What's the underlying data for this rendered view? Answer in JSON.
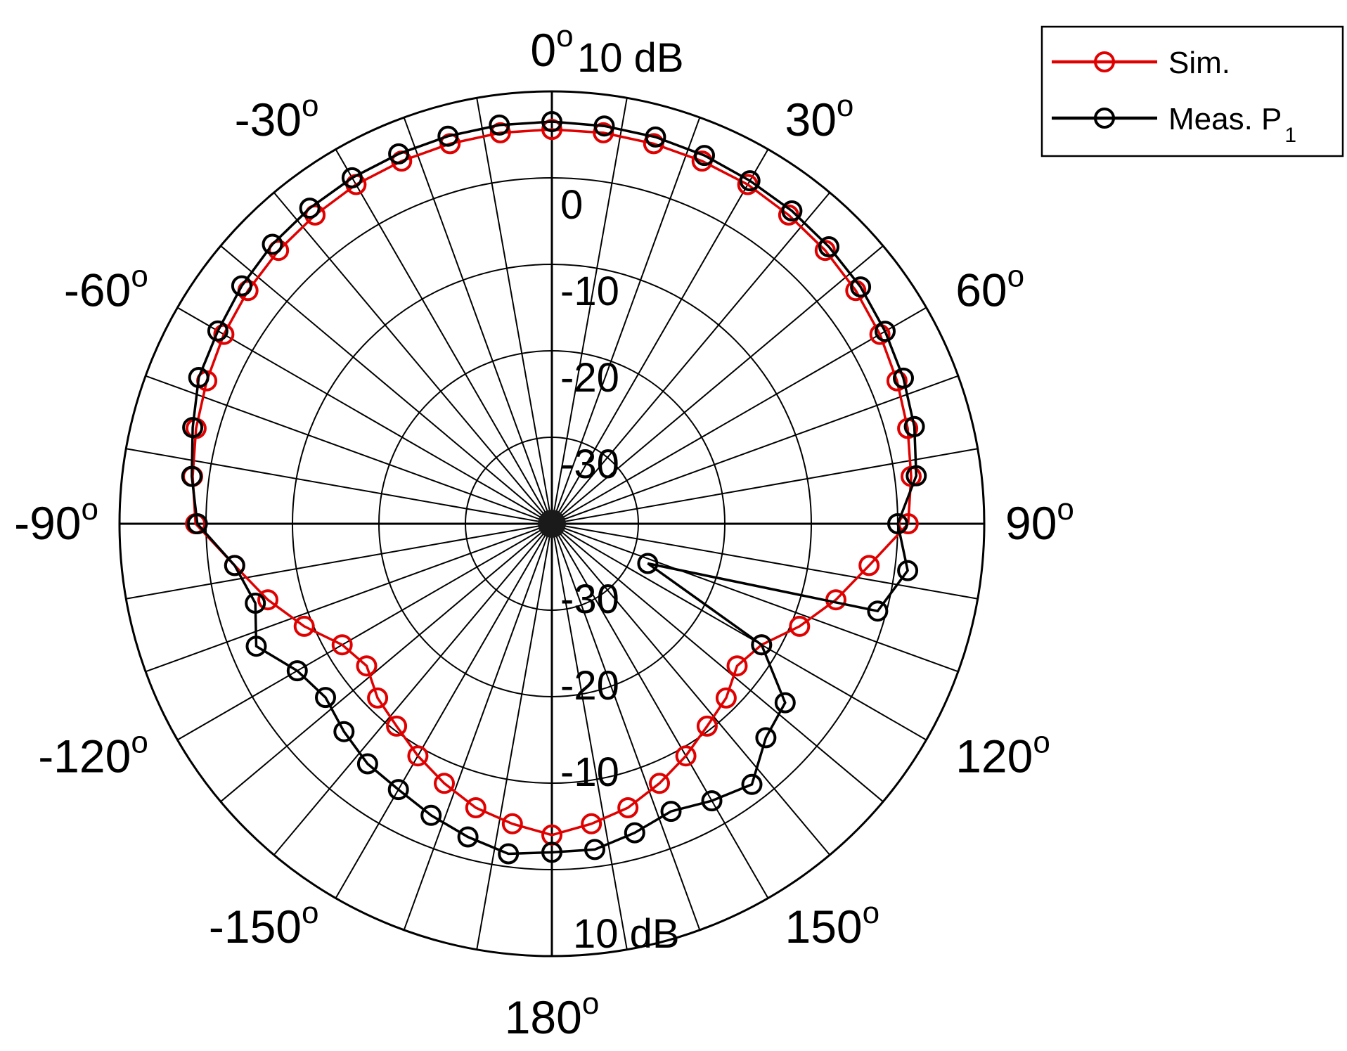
{
  "chart_data": {
    "type": "polar",
    "title": "",
    "r_unit": "dB",
    "r_range": [
      -40,
      10
    ],
    "r_ticks_upper": [
      "0",
      "-10",
      "-20",
      "-30"
    ],
    "r_ticks_lower": [
      "-30",
      "-20",
      "-10"
    ],
    "r_max_label": "10 dB",
    "angle_zero": "top",
    "angle_direction": "clockwise",
    "angle_labels": [
      "0",
      "30",
      "60",
      "90",
      "120",
      "150",
      "180",
      "-150",
      "-120",
      "-90",
      "-60",
      "-30"
    ],
    "angle_label_values": [
      0,
      30,
      60,
      90,
      120,
      150,
      180,
      -150,
      -120,
      -90,
      -60,
      -30
    ],
    "degree_symbol": "o",
    "angular_gridline_step_deg": 10,
    "grid": true,
    "legend": {
      "position": "top-right"
    },
    "series": [
      {
        "name": "Sim.",
        "name_sub": "",
        "color": "#e00000",
        "marker": "circle-open",
        "theta_deg": [
          0,
          7.5,
          15,
          22.5,
          30,
          37.5,
          45,
          52.5,
          60,
          67.5,
          75,
          82.5,
          90,
          97.5,
          105,
          112.5,
          120,
          127.5,
          135,
          142.5,
          150,
          157.5,
          165,
          172.5,
          180,
          -172.5,
          -165,
          -157.5,
          -150,
          -142.5,
          -135,
          -127.5,
          -120,
          -112.5,
          -105,
          -97.5,
          -90,
          -82.5,
          -75,
          -67.5,
          -60,
          -52.5,
          -45,
          -37.5,
          -30,
          -22.5,
          -15,
          -7.5
        ],
        "r_db": [
          5.6,
          5.6,
          5.5,
          5.4,
          5.3,
          5.0,
          4.7,
          4.3,
          3.8,
          3.2,
          2.6,
          1.9,
          1.2,
          -3.0,
          -6.0,
          -9.0,
          -12.0,
          -13.0,
          -11.5,
          -10.5,
          -9.0,
          -7.5,
          -6.0,
          -5.0,
          -4.0,
          -5.0,
          -6.0,
          -7.5,
          -9.0,
          -10.5,
          -11.5,
          -13.0,
          -12.0,
          -9.0,
          -6.0,
          -3.0,
          1.2,
          1.9,
          2.6,
          3.2,
          3.8,
          4.3,
          4.7,
          5.0,
          5.3,
          5.4,
          5.5,
          5.6
        ]
      },
      {
        "name": "Meas. P",
        "name_sub": "1",
        "color": "#000000",
        "marker": "circle-open",
        "theta_deg": [
          0,
          7.5,
          15,
          22.5,
          30,
          37.5,
          45,
          52.5,
          60,
          67.5,
          75,
          82.5,
          90,
          97.5,
          105,
          112.5,
          120,
          127.5,
          135,
          142.5,
          150,
          157.5,
          165,
          172.5,
          180,
          -172.5,
          -165,
          -157.5,
          -150,
          -142.5,
          -135,
          -127.5,
          -120,
          -112.5,
          -105,
          -97.5,
          -90,
          -82.5,
          -75,
          -67.5,
          -60,
          -52.5,
          -45,
          -37.5,
          -30,
          -22.5,
          -15,
          -7.5
        ],
        "r_db": [
          6.5,
          6.4,
          6.3,
          6.1,
          5.8,
          5.6,
          5.3,
          5.0,
          4.5,
          4.0,
          3.4,
          2.5,
          0.0,
          1.5,
          -1.0,
          -28.0,
          -12.0,
          -6.0,
          -5.0,
          -2.0,
          -3.0,
          -4.0,
          -3.0,
          -2.0,
          -2.0,
          -1.5,
          -2.5,
          -3.5,
          -4.5,
          -5.0,
          -6.0,
          -7.0,
          -6.0,
          -3.0,
          -4.5,
          -3.0,
          1.0,
          2.0,
          3.0,
          4.2,
          4.6,
          5.2,
          5.7,
          6.0,
          6.2,
          6.3,
          6.4,
          6.5
        ]
      }
    ]
  }
}
